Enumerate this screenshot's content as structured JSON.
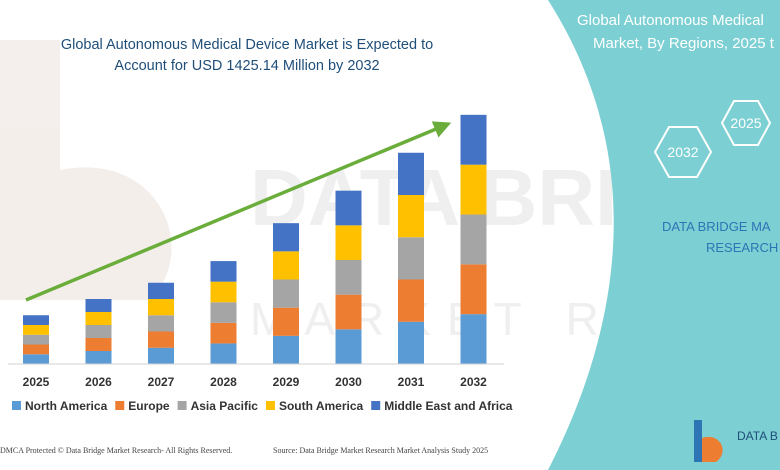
{
  "title_lines": [
    "Global Autonomous Medical Device Market is Expected to",
    "Account for USD 1425.14 Million by 2032"
  ],
  "side_panel": {
    "title_lines": [
      "Global Autonomous Medical",
      "Market, By Regions, 2025 t"
    ],
    "hex_labels": [
      "2025",
      "2032"
    ],
    "brand_lines": [
      "DATA BRIDGE MA",
      "RESEARCH"
    ]
  },
  "watermark": {
    "line1": "DATA BRIDGE",
    "line2": "MARKET RESEARCH"
  },
  "footer": {
    "left": "DMCA Protected © Data Bridge Market Research- All Rights Reserved.",
    "right": "Source: Data Bridge Market Research Market Analysis Study 2025"
  },
  "logo_text": "DATA B",
  "colors": {
    "north_america": "#5b9bd5",
    "europe": "#ed7d31",
    "asia_pacific": "#a5a5a5",
    "south_america": "#ffc000",
    "middle_east_africa": "#4472c4",
    "arrow": "#6aad3a",
    "panel": "#7ccfd2"
  },
  "chart_data": {
    "type": "bar",
    "stacked": true,
    "categories": [
      "2025",
      "2026",
      "2027",
      "2028",
      "2029",
      "2030",
      "2031",
      "2032"
    ],
    "series": [
      {
        "name": "North America",
        "values": [
          9,
          12,
          15,
          19,
          26,
          32,
          39,
          46
        ]
      },
      {
        "name": "Europe",
        "values": [
          9,
          12,
          15,
          19,
          26,
          32,
          39,
          46
        ]
      },
      {
        "name": "Asia Pacific",
        "values": [
          9,
          12,
          15,
          19,
          26,
          32,
          39,
          46
        ]
      },
      {
        "name": "South America",
        "values": [
          9,
          12,
          15,
          19,
          26,
          32,
          39,
          46
        ]
      },
      {
        "name": "Middle East and Africa",
        "values": [
          9,
          12,
          15,
          19,
          26,
          32,
          39,
          46
        ]
      }
    ],
    "legend": "bottom",
    "grid": false,
    "ylim": [
      0,
      240
    ]
  }
}
